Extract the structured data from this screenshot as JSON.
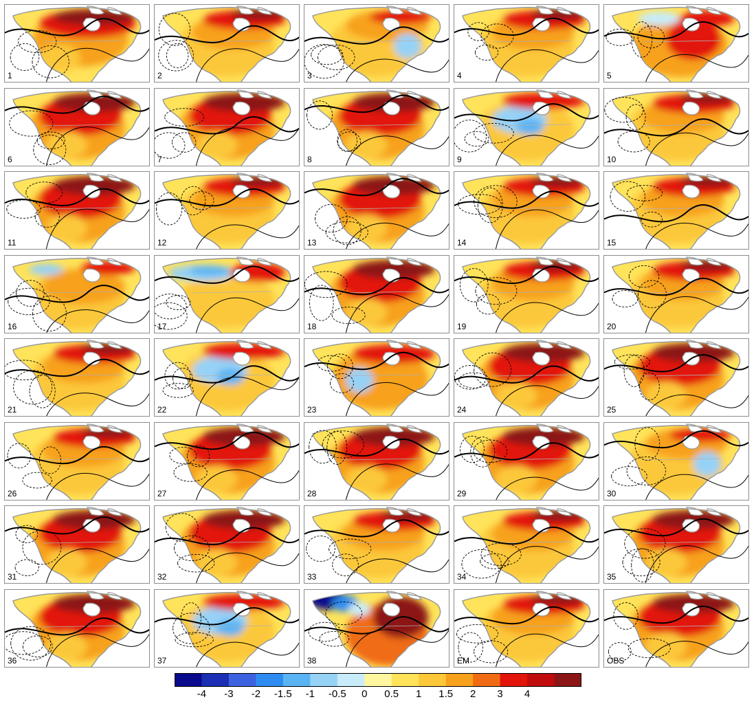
{
  "panels": [
    {
      "label": "1",
      "scheme": "warm-north"
    },
    {
      "label": "2",
      "scheme": "moderate"
    },
    {
      "label": "3",
      "scheme": "moderate-cool-east"
    },
    {
      "label": "4",
      "scheme": "moderate"
    },
    {
      "label": "5",
      "scheme": "warm-east"
    },
    {
      "label": "6",
      "scheme": "warm"
    },
    {
      "label": "7",
      "scheme": "warm"
    },
    {
      "label": "8",
      "scheme": "warm"
    },
    {
      "label": "9",
      "scheme": "cool-center"
    },
    {
      "label": "10",
      "scheme": "moderate"
    },
    {
      "label": "11",
      "scheme": "warm"
    },
    {
      "label": "12",
      "scheme": "moderate"
    },
    {
      "label": "13",
      "scheme": "warm"
    },
    {
      "label": "14",
      "scheme": "moderate"
    },
    {
      "label": "15",
      "scheme": "moderate"
    },
    {
      "label": "16",
      "scheme": "moderate-cool-north"
    },
    {
      "label": "17",
      "scheme": "cool-north"
    },
    {
      "label": "18",
      "scheme": "warm"
    },
    {
      "label": "19",
      "scheme": "moderate"
    },
    {
      "label": "20",
      "scheme": "moderate"
    },
    {
      "label": "21",
      "scheme": "moderate"
    },
    {
      "label": "22",
      "scheme": "cool-center"
    },
    {
      "label": "23",
      "scheme": "moderate-cool-west"
    },
    {
      "label": "24",
      "scheme": "warm"
    },
    {
      "label": "25",
      "scheme": "warm"
    },
    {
      "label": "26",
      "scheme": "moderate"
    },
    {
      "label": "27",
      "scheme": "warm"
    },
    {
      "label": "28",
      "scheme": "warm"
    },
    {
      "label": "29",
      "scheme": "warm"
    },
    {
      "label": "30",
      "scheme": "moderate-cool-east"
    },
    {
      "label": "31",
      "scheme": "warm"
    },
    {
      "label": "32",
      "scheme": "warm"
    },
    {
      "label": "33",
      "scheme": "moderate"
    },
    {
      "label": "34",
      "scheme": "moderate"
    },
    {
      "label": "35",
      "scheme": "warm"
    },
    {
      "label": "36",
      "scheme": "warm"
    },
    {
      "label": "37",
      "scheme": "cool-center"
    },
    {
      "label": "38",
      "scheme": "cold-northwest"
    },
    {
      "label": "EM",
      "scheme": "moderate"
    },
    {
      "label": "OBS",
      "scheme": "warm"
    }
  ],
  "colorbar": {
    "colors": [
      "#0a0a8c",
      "#1c2eb4",
      "#3c62e0",
      "#2e8cf0",
      "#5ab4f4",
      "#96d2f6",
      "#c8ecfa",
      "#fff6a0",
      "#ffe35a",
      "#fcc83a",
      "#f7a11c",
      "#f06c14",
      "#e3140a",
      "#c00c0c",
      "#8c1616"
    ],
    "tick_labels": [
      "-4",
      "-3",
      "-2",
      "-1.5",
      "-1",
      "-0.5",
      "0",
      "0.5",
      "1",
      "1.5",
      "2",
      "3",
      "4"
    ]
  },
  "style": {
    "land_outline": "#9a9a9a",
    "contour": "#000000"
  }
}
